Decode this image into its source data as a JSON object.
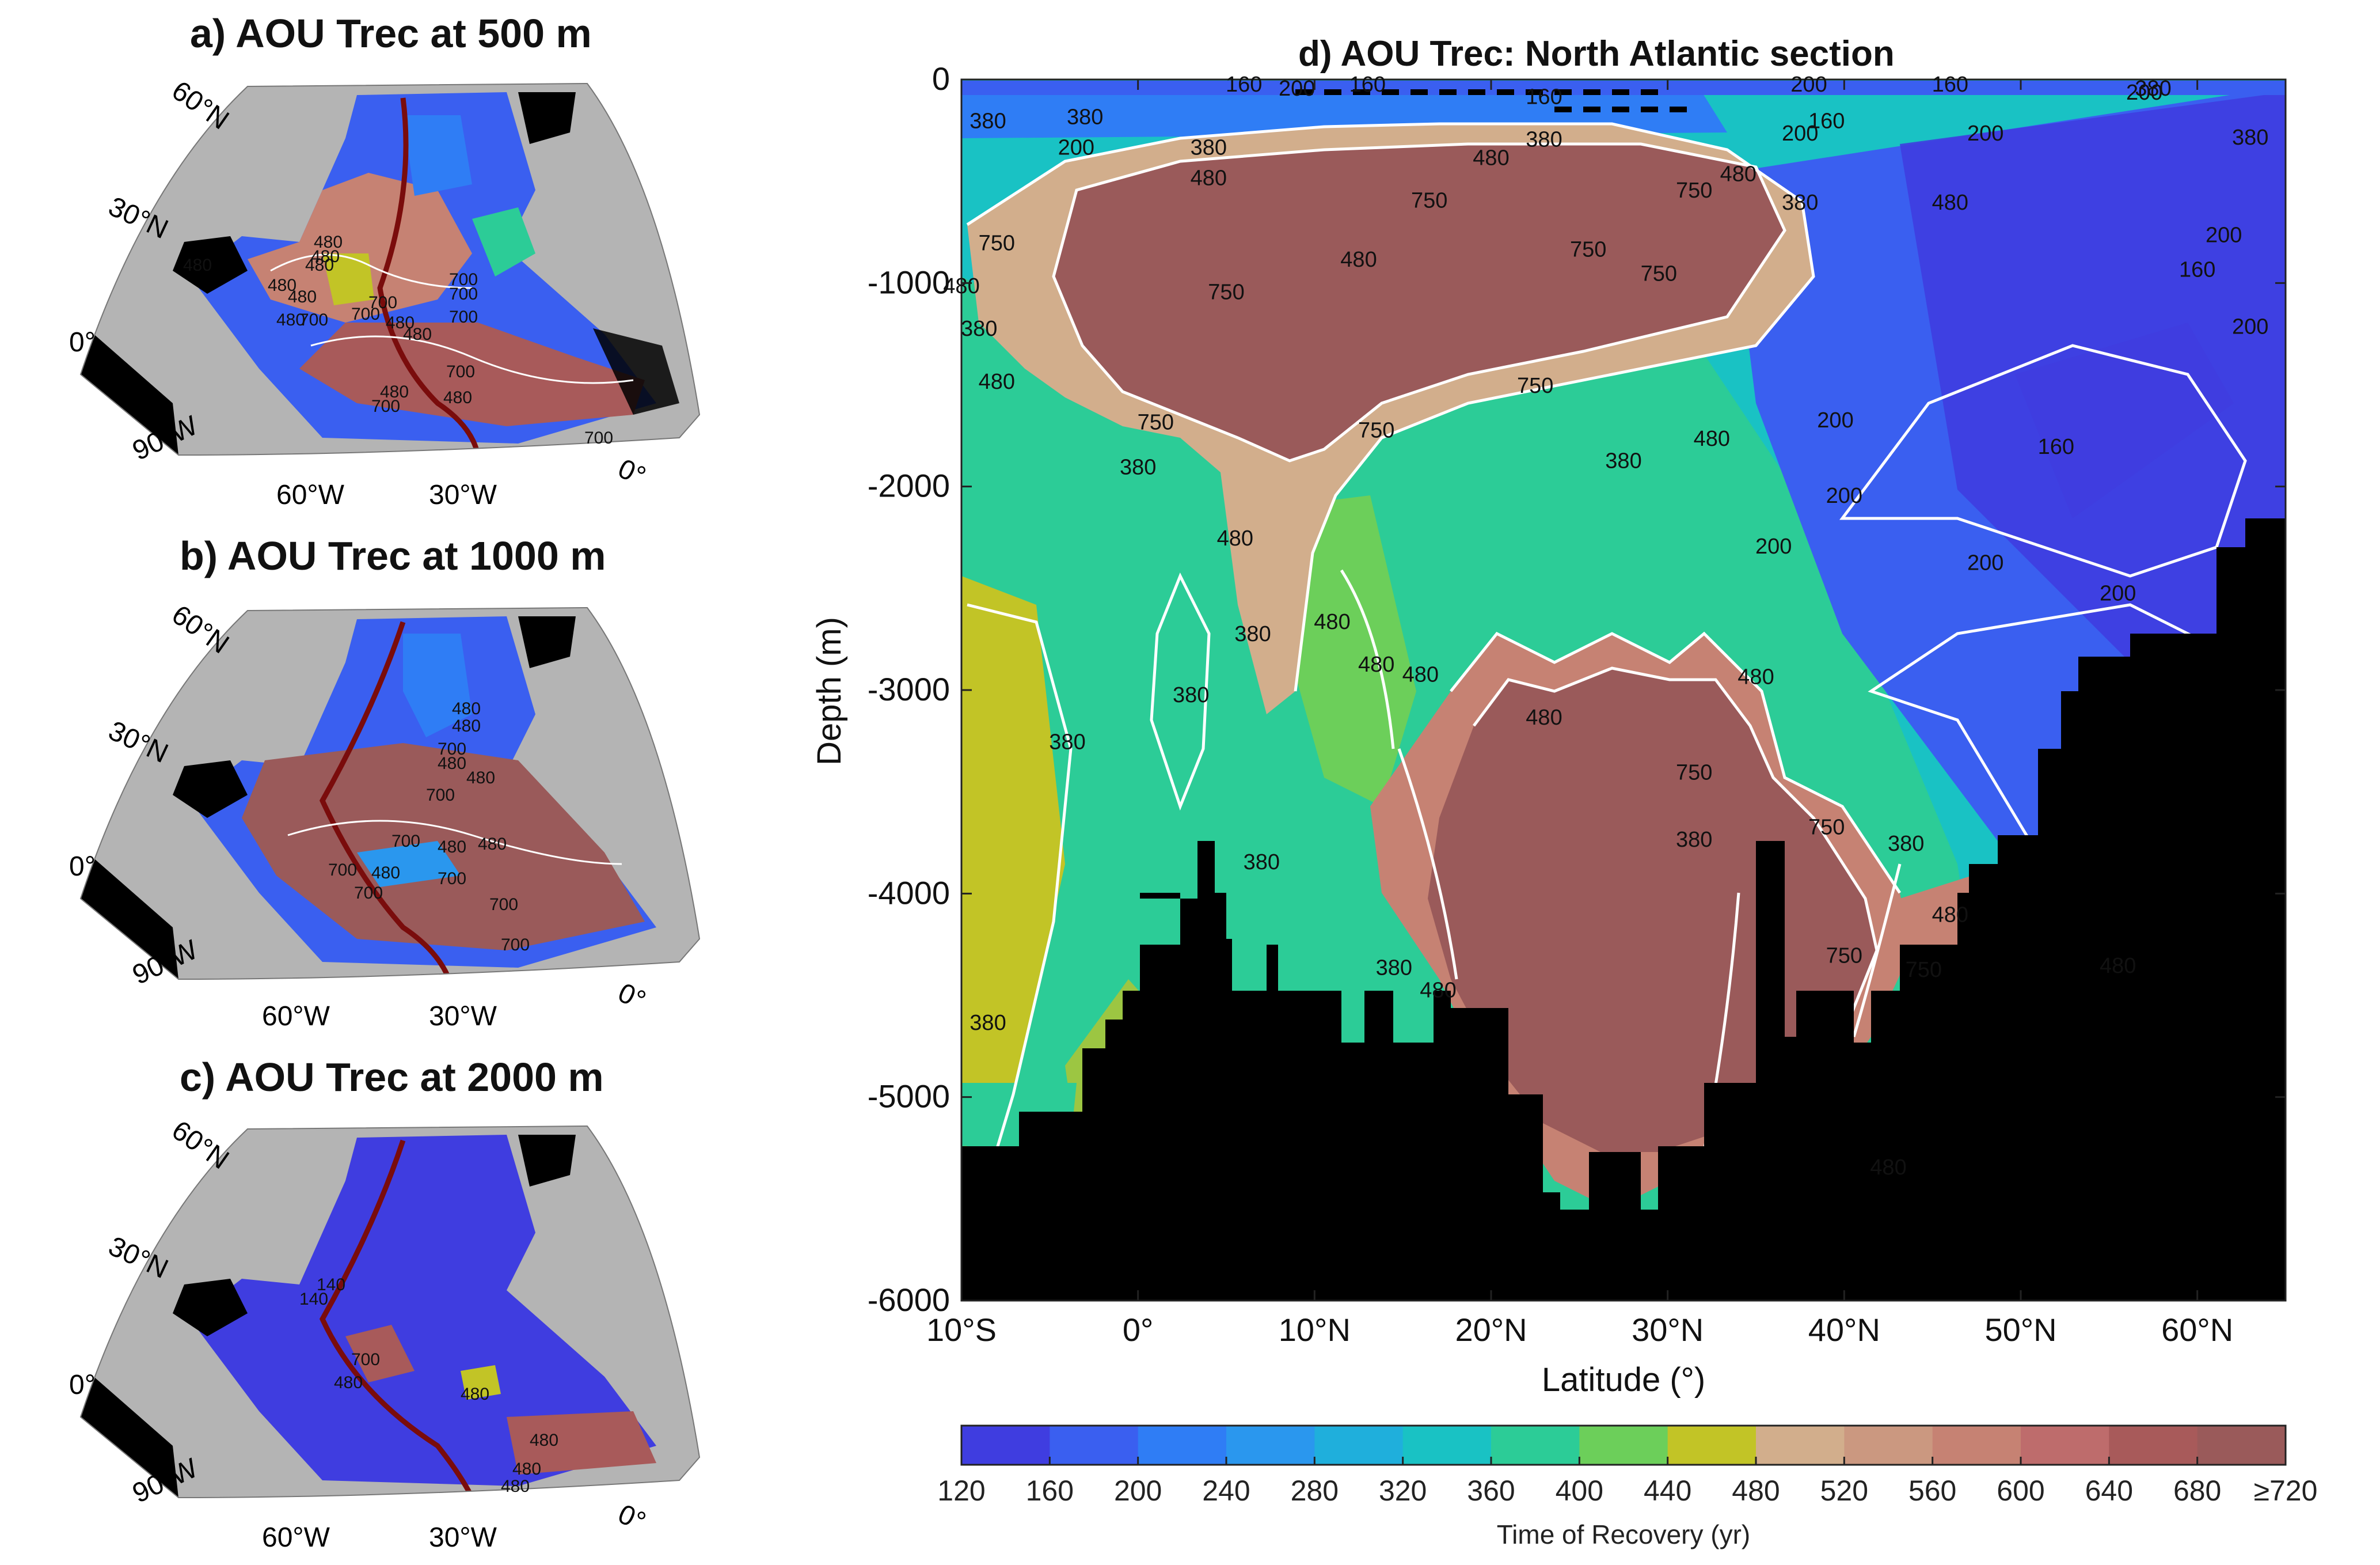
{
  "figure": {
    "panel_a_title": "a) AOU Trec at 500 m",
    "panel_b_title": "b) AOU Trec at 1000 m",
    "panel_c_title": "c) AOU Trec at 2000 m",
    "panel_d_title": "d) AOU Trec: North Atlantic section"
  },
  "map_labels": {
    "lat_60": "60°N",
    "lat_30": "30°N",
    "lat_0": "0°",
    "lon_90w": "90°W",
    "lon_60w": "60°W",
    "lon_30w": "30°W",
    "lon_0": "0°"
  },
  "colors": {
    "land": "#b4b4b4",
    "seafloor": "#000000",
    "section_line": "#7a0c0c",
    "contour": "#ffffff",
    "colormap": [
      "#3f3de0",
      "#3a5ff0",
      "#2f7df5",
      "#2a97ee",
      "#1fafdc",
      "#19c2c4",
      "#2ccc97",
      "#6ccf5a",
      "#c2c426",
      "#d2ae8c",
      "#cb9880",
      "#c68273",
      "#be6c6c",
      "#a85a5a",
      "#9a5a5a"
    ]
  },
  "map_panels": [
    {
      "id": "a",
      "depth_m": 500,
      "contour_labels": [
        "480",
        "480",
        "480",
        "480",
        "480",
        "480",
        "480",
        "700",
        "700",
        "700",
        "700",
        "700",
        "700",
        "480",
        "480",
        "700",
        "480",
        "480",
        "700",
        "700"
      ]
    },
    {
      "id": "b",
      "depth_m": 1000,
      "contour_labels": [
        "480",
        "480",
        "700",
        "480",
        "480",
        "700",
        "480",
        "700",
        "700",
        "480",
        "700",
        "700",
        "480",
        "700",
        "700"
      ]
    },
    {
      "id": "c",
      "depth_m": 2000,
      "contour_labels": [
        "140",
        "140",
        "700",
        "480",
        "480",
        "480",
        "480",
        "480"
      ]
    }
  ],
  "chart_data": {
    "type": "heatmap",
    "title": "d) AOU Trec: North Atlantic section",
    "xlabel": "Latitude (°)",
    "ylabel": "Depth (m)",
    "xlim": [
      -10,
      65
    ],
    "ylim": [
      -6000,
      0
    ],
    "x_ticks": [
      -10,
      0,
      10,
      20,
      30,
      40,
      50,
      60
    ],
    "x_tick_labels": [
      "10°S",
      "0°",
      "10°N",
      "20°N",
      "30°N",
      "40°N",
      "50°N",
      "60°N"
    ],
    "y_ticks": [
      0,
      -1000,
      -2000,
      -3000,
      -4000,
      -5000,
      -6000
    ],
    "y_tick_labels": [
      "0",
      "-1000",
      "-2000",
      "-3000",
      "-4000",
      "-5000",
      "-6000"
    ],
    "contour_levels": [
      160,
      200,
      380,
      480,
      750
    ],
    "colorbar": {
      "label": "Time of Recovery (yr)",
      "ticks": [
        "120",
        "160",
        "200",
        "240",
        "280",
        "320",
        "360",
        "400",
        "440",
        "480",
        "520",
        "560",
        "600",
        "640",
        "680",
        "≥720"
      ]
    },
    "contour_labels": [
      {
        "lat": 6,
        "depth": -20,
        "label": "160"
      },
      {
        "lat": 9,
        "depth": -40,
        "label": "200"
      },
      {
        "lat": 13,
        "depth": -20,
        "label": "160"
      },
      {
        "lat": 23,
        "depth": -80,
        "label": "160"
      },
      {
        "lat": 38,
        "depth": -20,
        "label": "200"
      },
      {
        "lat": 39,
        "depth": -200,
        "label": "160"
      },
      {
        "lat": 37.5,
        "depth": -260,
        "label": "200"
      },
      {
        "lat": 46,
        "depth": -20,
        "label": "160"
      },
      {
        "lat": 57.5,
        "depth": -40,
        "label": "380"
      },
      {
        "lat": 57,
        "depth": -60,
        "label": "200"
      },
      {
        "lat": -8.5,
        "depth": -200,
        "label": "380"
      },
      {
        "lat": -3,
        "depth": -180,
        "label": "380"
      },
      {
        "lat": 4,
        "depth": -330,
        "label": "380"
      },
      {
        "lat": -3.5,
        "depth": -330,
        "label": "200"
      },
      {
        "lat": 23,
        "depth": -290,
        "label": "380"
      },
      {
        "lat": 20,
        "depth": -380,
        "label": "480"
      },
      {
        "lat": 34,
        "depth": -460,
        "label": "480"
      },
      {
        "lat": 4,
        "depth": -480,
        "label": "480"
      },
      {
        "lat": 48,
        "depth": -260,
        "label": "200"
      },
      {
        "lat": 63,
        "depth": -280,
        "label": "380"
      },
      {
        "lat": -8,
        "depth": -800,
        "label": "750"
      },
      {
        "lat": 16.5,
        "depth": -590,
        "label": "750"
      },
      {
        "lat": 25.5,
        "depth": -830,
        "label": "750"
      },
      {
        "lat": 31.5,
        "depth": -540,
        "label": "750"
      },
      {
        "lat": 37.5,
        "depth": -600,
        "label": "380"
      },
      {
        "lat": 46,
        "depth": -600,
        "label": "480"
      },
      {
        "lat": 12.5,
        "depth": -880,
        "label": "480"
      },
      {
        "lat": 5,
        "depth": -1040,
        "label": "750"
      },
      {
        "lat": 29.5,
        "depth": -950,
        "label": "750"
      },
      {
        "lat": 61.5,
        "depth": -760,
        "label": "200"
      },
      {
        "lat": 60,
        "depth": -930,
        "label": "160"
      },
      {
        "lat": 63,
        "depth": -1210,
        "label": "200"
      },
      {
        "lat": -10,
        "depth": -1010,
        "label": "480"
      },
      {
        "lat": -9,
        "depth": -1220,
        "label": "380"
      },
      {
        "lat": -8,
        "depth": -1480,
        "label": "480"
      },
      {
        "lat": 1,
        "depth": -1680,
        "label": "750"
      },
      {
        "lat": 13.5,
        "depth": -1720,
        "label": "750"
      },
      {
        "lat": 22.5,
        "depth": -1500,
        "label": "750"
      },
      {
        "lat": 27.5,
        "depth": -1870,
        "label": "380"
      },
      {
        "lat": 32.5,
        "depth": -1760,
        "label": "480"
      },
      {
        "lat": 39.5,
        "depth": -1670,
        "label": "200"
      },
      {
        "lat": 40,
        "depth": -2040,
        "label": "200"
      },
      {
        "lat": 48,
        "depth": -2370,
        "label": "200"
      },
      {
        "lat": 52,
        "depth": -1800,
        "label": "160"
      },
      {
        "lat": 0,
        "depth": -1900,
        "label": "380"
      },
      {
        "lat": 5.5,
        "depth": -2250,
        "label": "480"
      },
      {
        "lat": 16,
        "depth": -2920,
        "label": "480"
      },
      {
        "lat": 36,
        "depth": -2290,
        "label": "200"
      },
      {
        "lat": 55.5,
        "depth": -2520,
        "label": "200"
      },
      {
        "lat": 6.5,
        "depth": -2720,
        "label": "380"
      },
      {
        "lat": 11,
        "depth": -2660,
        "label": "480"
      },
      {
        "lat": 13.5,
        "depth": -2870,
        "label": "480"
      },
      {
        "lat": 3,
        "depth": -3020,
        "label": "380"
      },
      {
        "lat": -4,
        "depth": -3250,
        "label": "380"
      },
      {
        "lat": 23,
        "depth": -3130,
        "label": "480"
      },
      {
        "lat": 31.5,
        "depth": -3730,
        "label": "380"
      },
      {
        "lat": 35,
        "depth": -2930,
        "label": "480"
      },
      {
        "lat": 31.5,
        "depth": -3400,
        "label": "750"
      },
      {
        "lat": 39,
        "depth": -3670,
        "label": "750"
      },
      {
        "lat": 43.5,
        "depth": -3750,
        "label": "380"
      },
      {
        "lat": 46,
        "depth": -4100,
        "label": "480"
      },
      {
        "lat": 55.5,
        "depth": -4350,
        "label": "480"
      },
      {
        "lat": 7,
        "depth": -3840,
        "label": "380"
      },
      {
        "lat": 14.5,
        "depth": -4360,
        "label": "380"
      },
      {
        "lat": 17,
        "depth": -4470,
        "label": "480"
      },
      {
        "lat": -8.5,
        "depth": -4630,
        "label": "380"
      },
      {
        "lat": 40,
        "depth": -4300,
        "label": "750"
      },
      {
        "lat": 44.5,
        "depth": -4370,
        "label": "750"
      },
      {
        "lat": 42.5,
        "depth": -5340,
        "label": "480"
      }
    ],
    "notes_bathymetry_visible": "black seafloor mask stepping from about -5250 m at 10°S to about -2250 m at 65°N"
  }
}
